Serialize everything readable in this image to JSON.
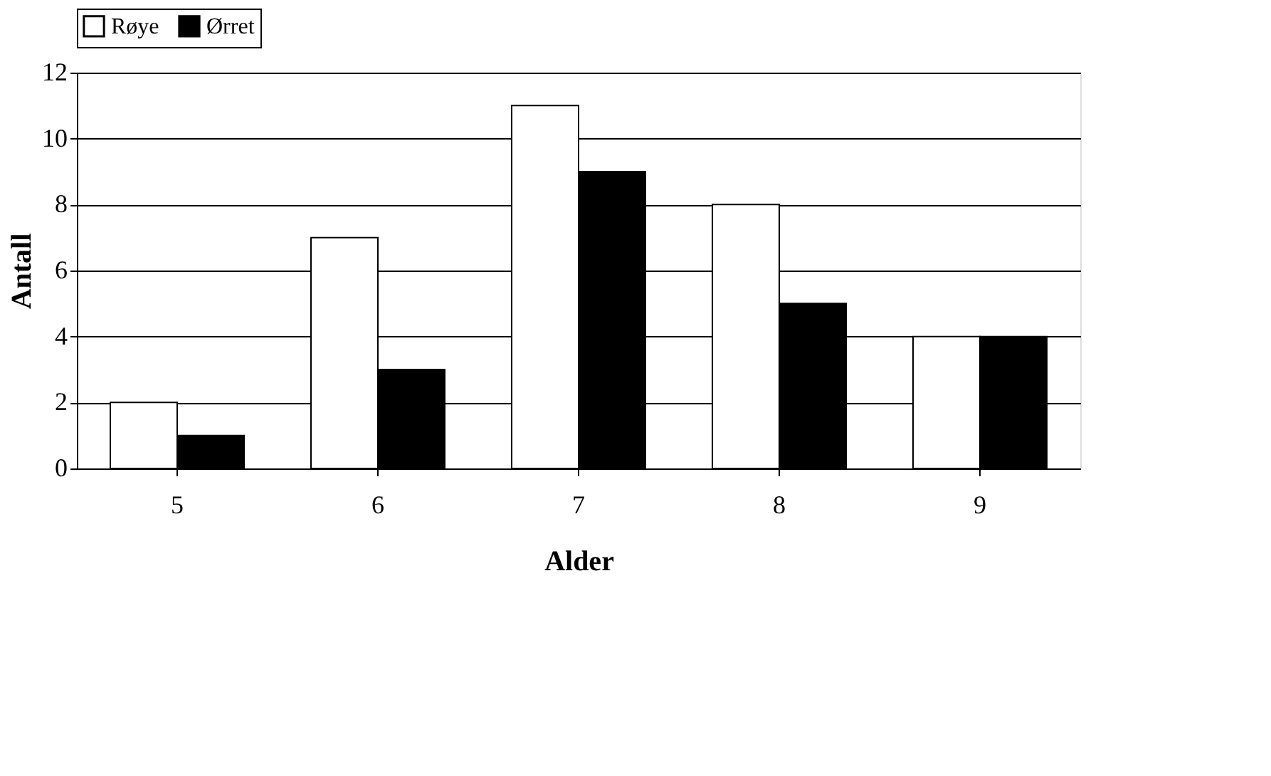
{
  "chart_data": {
    "type": "bar",
    "xlabel": "Alder",
    "ylabel": "Antall",
    "categories": [
      "5",
      "6",
      "7",
      "8",
      "9"
    ],
    "series": [
      {
        "name": "Røye",
        "color": "#ffffff",
        "values": [
          2,
          7,
          11,
          8,
          4
        ]
      },
      {
        "name": "Ørret",
        "color": "#000000",
        "values": [
          1,
          3,
          9,
          5,
          4
        ]
      }
    ],
    "ylim": [
      0,
      12
    ],
    "yticks": [
      0,
      2,
      4,
      6,
      8,
      10,
      12
    ],
    "grid": "y",
    "legend": "top"
  }
}
